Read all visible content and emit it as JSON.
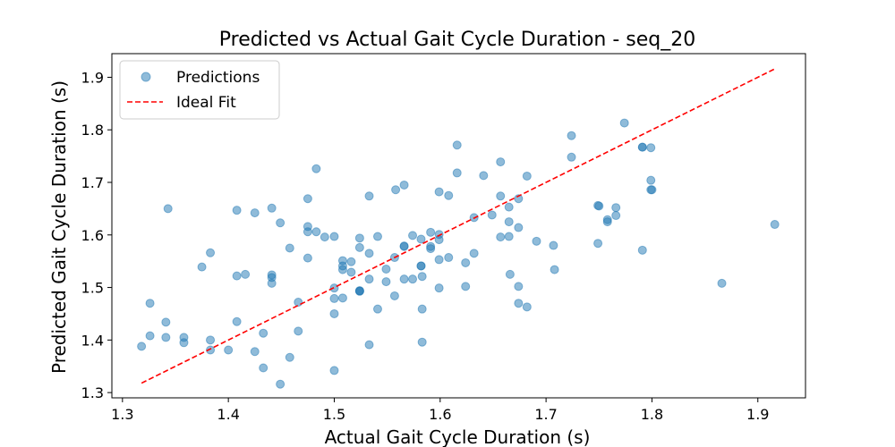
{
  "chart_data": {
    "type": "scatter",
    "title": "Predicted vs Actual Gait Cycle Duration - seq_20",
    "xlabel": "Actual Gait Cycle Duration (s)",
    "ylabel": "Predicted Gait Cycle Duration (s)",
    "xlim": [
      1.29,
      1.945
    ],
    "ylim": [
      1.29,
      1.945
    ],
    "xticks": [
      "1.3",
      "1.4",
      "1.5",
      "1.6",
      "1.7",
      "1.8",
      "1.9"
    ],
    "yticks": [
      "1.3",
      "1.4",
      "1.5",
      "1.6",
      "1.7",
      "1.8",
      "1.9"
    ],
    "grid": false,
    "legend_position": "top-left",
    "series": [
      {
        "name": "Predictions",
        "kind": "scatter",
        "color": "#1f77b4",
        "x": [
          1.318,
          1.326,
          1.326,
          1.341,
          1.341,
          1.343,
          1.358,
          1.358,
          1.375,
          1.383,
          1.383,
          1.383,
          1.4,
          1.408,
          1.408,
          1.408,
          1.416,
          1.425,
          1.425,
          1.433,
          1.433,
          1.441,
          1.441,
          1.441,
          1.441,
          1.449,
          1.449,
          1.458,
          1.458,
          1.466,
          1.466,
          1.475,
          1.475,
          1.475,
          1.475,
          1.483,
          1.483,
          1.491,
          1.5,
          1.5,
          1.5,
          1.5,
          1.5,
          1.508,
          1.508,
          1.508,
          1.508,
          1.516,
          1.516,
          1.524,
          1.524,
          1.524,
          1.524,
          1.524,
          1.533,
          1.533,
          1.533,
          1.533,
          1.541,
          1.541,
          1.549,
          1.549,
          1.557,
          1.557,
          1.558,
          1.566,
          1.566,
          1.566,
          1.566,
          1.574,
          1.574,
          1.582,
          1.582,
          1.582,
          1.583,
          1.583,
          1.583,
          1.591,
          1.591,
          1.591,
          1.599,
          1.599,
          1.599,
          1.599,
          1.599,
          1.608,
          1.608,
          1.616,
          1.616,
          1.624,
          1.624,
          1.632,
          1.632,
          1.641,
          1.649,
          1.657,
          1.657,
          1.657,
          1.665,
          1.665,
          1.665,
          1.666,
          1.674,
          1.674,
          1.674,
          1.674,
          1.682,
          1.682,
          1.691,
          1.707,
          1.708,
          1.724,
          1.724,
          1.749,
          1.749,
          1.75,
          1.758,
          1.758,
          1.766,
          1.766,
          1.774,
          1.791,
          1.791,
          1.791,
          1.799,
          1.799,
          1.799,
          1.8,
          1.866,
          1.916
        ],
        "y": [
          1.388,
          1.47,
          1.408,
          1.434,
          1.405,
          1.65,
          1.405,
          1.395,
          1.539,
          1.566,
          1.4,
          1.381,
          1.381,
          1.647,
          1.522,
          1.435,
          1.525,
          1.642,
          1.378,
          1.413,
          1.347,
          1.651,
          1.524,
          1.519,
          1.508,
          1.623,
          1.316,
          1.575,
          1.367,
          1.472,
          1.417,
          1.669,
          1.616,
          1.556,
          1.606,
          1.726,
          1.606,
          1.596,
          1.597,
          1.499,
          1.479,
          1.45,
          1.342,
          1.551,
          1.541,
          1.534,
          1.48,
          1.549,
          1.529,
          1.594,
          1.576,
          1.494,
          1.493,
          1.493,
          1.674,
          1.565,
          1.516,
          1.391,
          1.597,
          1.459,
          1.535,
          1.511,
          1.557,
          1.484,
          1.686,
          1.695,
          1.579,
          1.578,
          1.516,
          1.599,
          1.516,
          1.592,
          1.541,
          1.541,
          1.521,
          1.459,
          1.396,
          1.605,
          1.578,
          1.574,
          1.682,
          1.601,
          1.591,
          1.553,
          1.499,
          1.675,
          1.557,
          1.771,
          1.718,
          1.547,
          1.502,
          1.633,
          1.565,
          1.713,
          1.638,
          1.739,
          1.674,
          1.596,
          1.653,
          1.625,
          1.597,
          1.525,
          1.669,
          1.614,
          1.502,
          1.47,
          1.712,
          1.463,
          1.588,
          1.58,
          1.534,
          1.789,
          1.748,
          1.656,
          1.584,
          1.655,
          1.629,
          1.625,
          1.637,
          1.652,
          1.813,
          1.767,
          1.767,
          1.571,
          1.766,
          1.704,
          1.686,
          1.686,
          1.508,
          1.62
        ]
      },
      {
        "name": "Ideal Fit",
        "kind": "line",
        "color": "#ff0000",
        "dash": "dashed",
        "x": [
          1.318,
          1.916
        ],
        "y": [
          1.318,
          1.916
        ]
      }
    ]
  }
}
